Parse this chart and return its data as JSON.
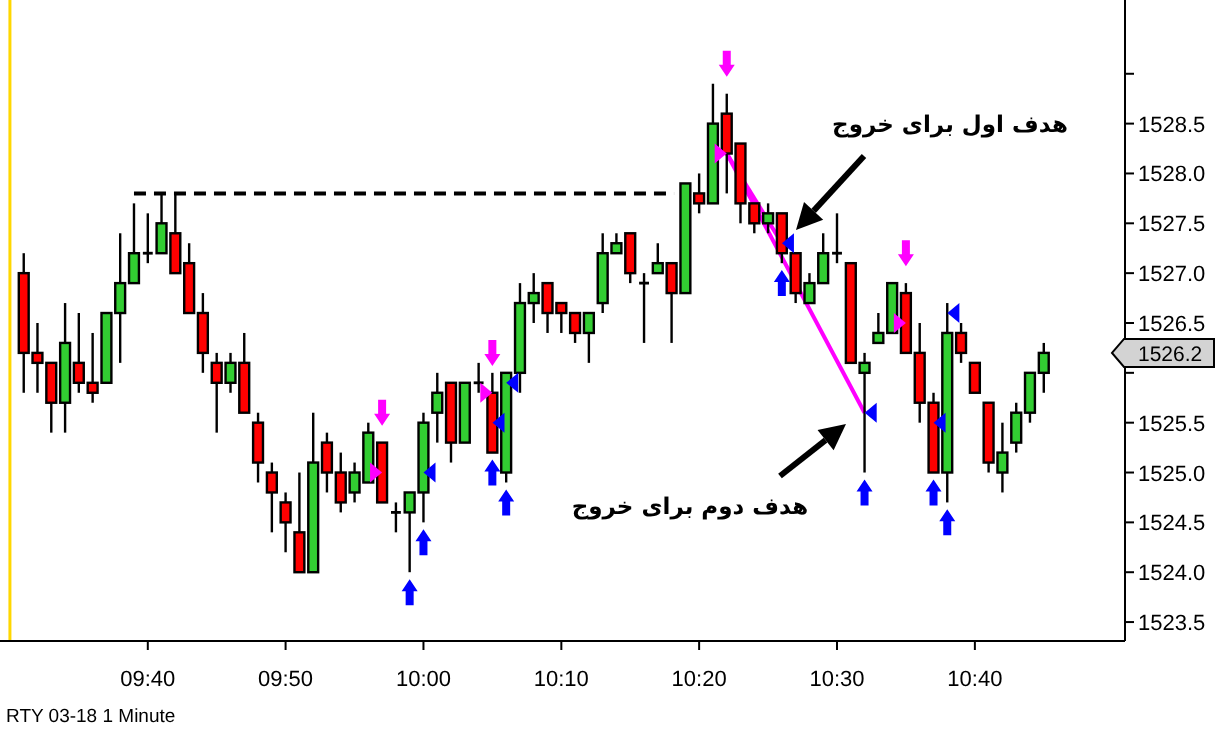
{
  "chart_data": {
    "type": "candlestick",
    "x": [
      9.5167,
      9.5333,
      9.55,
      9.5667,
      9.5833,
      9.6,
      9.6167,
      9.6333,
      9.65,
      9.6667,
      9.6833,
      9.7,
      9.7167,
      9.7333,
      9.75,
      9.7667,
      9.7833,
      9.8,
      9.8167,
      9.8333,
      9.85,
      9.8667,
      9.8833,
      9.9,
      9.9167,
      9.9333,
      9.95,
      9.9667,
      9.9833,
      10,
      10.0167,
      10.0333,
      10.05,
      10.0667,
      10.0833,
      10.1,
      10.1167,
      10.1333,
      10.15,
      10.1667,
      10.1833,
      10.2,
      10.2167,
      10.2333,
      10.25,
      10.2667,
      10.2833,
      10.3,
      10.3167,
      10.3333,
      10.35,
      10.3667,
      10.3833,
      10.4,
      10.4167,
      10.4333,
      10.45,
      10.4667,
      10.4833,
      10.5,
      10.5167,
      10.5333,
      10.55,
      10.5667,
      10.5833,
      10.6,
      10.6167,
      10.6333,
      10.65,
      10.6667,
      10.6833,
      10.7,
      10.7167,
      10.7333,
      10.75
    ],
    "ohlc": [
      [
        1527.0,
        1527.2,
        1525.8,
        1526.2
      ],
      [
        1526.2,
        1526.5,
        1525.8,
        1526.1
      ],
      [
        1526.1,
        1526.1,
        1525.4,
        1525.7
      ],
      [
        1525.7,
        1526.7,
        1525.4,
        1526.3
      ],
      [
        1526.1,
        1526.6,
        1525.8,
        1525.9
      ],
      [
        1525.9,
        1526.4,
        1525.7,
        1525.8
      ],
      [
        1525.9,
        1526.6,
        1525.9,
        1526.6
      ],
      [
        1526.6,
        1527.4,
        1526.1,
        1526.9
      ],
      [
        1526.9,
        1527.7,
        1526.9,
        1527.2
      ],
      [
        1527.2,
        1527.6,
        1527.1,
        1527.2
      ],
      [
        1527.2,
        1527.8,
        1527.2,
        1527.5
      ],
      [
        1527.4,
        1527.8,
        1527.0,
        1527.0
      ],
      [
        1527.1,
        1527.3,
        1526.6,
        1526.6
      ],
      [
        1526.6,
        1526.8,
        1526.0,
        1526.2
      ],
      [
        1526.1,
        1526.2,
        1525.4,
        1525.9
      ],
      [
        1525.9,
        1526.2,
        1525.8,
        1526.1
      ],
      [
        1526.1,
        1526.4,
        1525.6,
        1525.6
      ],
      [
        1525.5,
        1525.6,
        1524.9,
        1525.1
      ],
      [
        1525.0,
        1525.1,
        1524.4,
        1524.8
      ],
      [
        1524.7,
        1524.8,
        1524.2,
        1524.5
      ],
      [
        1524.4,
        1525.0,
        1524.0,
        1524.0
      ],
      [
        1524.0,
        1525.6,
        1524.0,
        1525.1
      ],
      [
        1525.3,
        1525.4,
        1524.8,
        1525.0
      ],
      [
        1525.0,
        1525.2,
        1524.6,
        1524.7
      ],
      [
        1524.8,
        1525.1,
        1524.7,
        1525.0
      ],
      [
        1524.9,
        1525.5,
        1524.9,
        1525.4
      ],
      [
        1525.3,
        1525.3,
        1524.7,
        1524.7
      ],
      [
        1524.6,
        1524.7,
        1524.4,
        1524.6
      ],
      [
        1524.6,
        1524.8,
        1524.0,
        1524.8
      ],
      [
        1524.8,
        1525.6,
        1524.5,
        1525.5
      ],
      [
        1525.6,
        1526.0,
        1525.3,
        1525.8
      ],
      [
        1525.9,
        1525.9,
        1525.1,
        1525.3
      ],
      [
        1525.3,
        1525.9,
        1525.3,
        1525.9
      ],
      [
        1525.9,
        1526.1,
        1525.8,
        1525.9
      ],
      [
        1525.8,
        1526.0,
        1525.2,
        1525.2
      ],
      [
        1525.0,
        1526.0,
        1524.9,
        1526.0
      ],
      [
        1526.0,
        1526.9,
        1525.8,
        1526.7
      ],
      [
        1526.7,
        1527.0,
        1526.5,
        1526.8
      ],
      [
        1526.9,
        1526.9,
        1526.4,
        1526.6
      ],
      [
        1526.7,
        1526.7,
        1526.4,
        1526.6
      ],
      [
        1526.6,
        1526.6,
        1526.3,
        1526.4
      ],
      [
        1526.4,
        1526.6,
        1526.1,
        1526.6
      ],
      [
        1526.7,
        1527.4,
        1526.6,
        1527.2
      ],
      [
        1527.2,
        1527.4,
        1527.2,
        1527.3
      ],
      [
        1527.4,
        1527.4,
        1526.9,
        1527.0
      ],
      [
        1526.9,
        1527.0,
        1526.3,
        1526.9
      ],
      [
        1527.0,
        1527.3,
        1527.0,
        1527.1
      ],
      [
        1527.1,
        1527.1,
        1526.3,
        1526.8
      ],
      [
        1526.8,
        1527.9,
        1526.8,
        1527.9
      ],
      [
        1527.8,
        1528.0,
        1527.6,
        1527.7
      ],
      [
        1527.7,
        1528.9,
        1527.7,
        1528.5
      ],
      [
        1528.6,
        1528.8,
        1527.8,
        1528.2
      ],
      [
        1528.3,
        1528.3,
        1527.5,
        1527.7
      ],
      [
        1527.7,
        1527.7,
        1527.4,
        1527.5
      ],
      [
        1527.5,
        1527.7,
        1527.4,
        1527.6
      ],
      [
        1527.6,
        1527.6,
        1527.1,
        1527.2
      ],
      [
        1527.2,
        1527.2,
        1526.7,
        1526.8
      ],
      [
        1526.7,
        1527.0,
        1526.7,
        1526.9
      ],
      [
        1526.9,
        1527.4,
        1526.9,
        1527.2
      ],
      [
        1527.2,
        1527.6,
        1527.1,
        1527.2
      ],
      [
        1527.1,
        1527.1,
        1526.1,
        1526.1
      ],
      [
        1526.0,
        1526.2,
        1525.0,
        1526.1
      ],
      [
        1526.3,
        1526.6,
        1526.3,
        1526.4
      ],
      [
        1526.4,
        1526.9,
        1526.4,
        1526.9
      ],
      [
        1526.8,
        1526.9,
        1526.2,
        1526.2
      ],
      [
        1526.2,
        1526.5,
        1525.5,
        1525.7
      ],
      [
        1525.7,
        1525.8,
        1525.0,
        1525.0
      ],
      [
        1525.0,
        1526.7,
        1524.7,
        1526.4
      ],
      [
        1526.4,
        1526.5,
        1526.1,
        1526.2
      ],
      [
        1526.1,
        1526.1,
        1525.8,
        1525.8
      ],
      [
        1525.7,
        1525.7,
        1525.0,
        1525.1
      ],
      [
        1525.0,
        1525.5,
        1524.8,
        1525.2
      ],
      [
        1525.3,
        1525.7,
        1525.2,
        1525.6
      ],
      [
        1525.6,
        1526.0,
        1525.5,
        1526.0
      ],
      [
        1526.0,
        1526.3,
        1525.8,
        1526.2
      ]
    ],
    "colors": [
      "#ff0000",
      "#ff0000",
      "#ff0000",
      "#32cd32",
      "#ff0000",
      "#ff0000",
      "#32cd32",
      "#32cd32",
      "#32cd32",
      "#000000",
      "#32cd32",
      "#ff0000",
      "#ff0000",
      "#ff0000",
      "#ff0000",
      "#32cd32",
      "#ff0000",
      "#ff0000",
      "#ff0000",
      "#ff0000",
      "#ff0000",
      "#32cd32",
      "#ff0000",
      "#ff0000",
      "#32cd32",
      "#32cd32",
      "#ff0000",
      "#000000",
      "#32cd32",
      "#32cd32",
      "#32cd32",
      "#ff0000",
      "#32cd32",
      "#000000",
      "#ff0000",
      "#32cd32",
      "#32cd32",
      "#32cd32",
      "#ff0000",
      "#ff0000",
      "#ff0000",
      "#32cd32",
      "#32cd32",
      "#32cd32",
      "#ff0000",
      "#000000",
      "#32cd32",
      "#ff0000",
      "#32cd32",
      "#ff0000",
      "#32cd32",
      "#ff0000",
      "#ff0000",
      "#ff0000",
      "#32cd32",
      "#ff0000",
      "#ff0000",
      "#32cd32",
      "#32cd32",
      "#000000",
      "#ff0000",
      "#32cd32",
      "#32cd32",
      "#32cd32",
      "#ff0000",
      "#ff0000",
      "#ff0000",
      "#32cd32",
      "#ff0000",
      "#ff0000",
      "#ff0000",
      "#32cd32",
      "#32cd32",
      "#32cd32",
      "#32cd32"
    ],
    "xlim": [
      9.488,
      10.847
    ],
    "ylim": [
      1523.32,
      1529.74
    ],
    "xticks": [
      {
        "value": 9.6667,
        "label": "09:40"
      },
      {
        "value": 9.8333,
        "label": "09:50"
      },
      {
        "value": 10,
        "label": "10:00"
      },
      {
        "value": 10.1667,
        "label": "10:10"
      },
      {
        "value": 10.3333,
        "label": "10:20"
      },
      {
        "value": 10.5,
        "label": "10:30"
      },
      {
        "value": 10.6667,
        "label": "10:40"
      }
    ],
    "yticks": [
      1523.5,
      {
        "value": 1524,
        "label": "1524.0"
      },
      1524.5,
      {
        "value": 1525,
        "label": "1525.0"
      },
      1525.5,
      {
        "value": 1526,
        "label": null
      },
      1526.2,
      1526.5,
      {
        "value": 1527,
        "label": "1527.0"
      },
      1527.5,
      {
        "value": 1528,
        "label": "1528.0"
      },
      1528.5,
      {
        "value": 1529,
        "label": null
      }
    ],
    "series": [
      {
        "type": "line",
        "x": [
          9.65,
          10.303
        ],
        "values": [
          1527.8,
          1527.8
        ],
        "color": "#000000",
        "line_style": "dashed"
      },
      {
        "type": "line",
        "x": [
          10.3667,
          10.4333
        ],
        "values": [
          1528.2,
          1527.3
        ],
        "color": "#ff00ff"
      },
      {
        "type": "line",
        "x": [
          10.3667,
          10.5333
        ],
        "values": [
          1528.2,
          1525.6
        ],
        "color": "#ff00ff"
      },
      {
        "type": "scatter",
        "x": [
          9.95,
          10.0833,
          10.3667,
          10.5833
        ],
        "values": [
          1525.6,
          1526.2,
          1529.1,
          1527.2
        ],
        "color": "#ff00ff",
        "marker": "triangle"
      },
      {
        "type": "scatter",
        "x": [
          9.9833,
          10,
          10.0833,
          10.1,
          10.4333,
          10.5333,
          10.6167,
          10.6333
        ],
        "values": [
          1523.8,
          1524.3,
          1525.0,
          1524.7,
          1526.9,
          1524.8,
          1524.8,
          1524.5
        ],
        "color": "#0000ff",
        "marker": "triangle"
      },
      {
        "type": "scatter",
        "x": [
          10.0073,
          10.0907,
          10.1073,
          10.4407,
          10.5407,
          10.624,
          10.6407
        ],
        "values": [
          1525.0,
          1525.5,
          1525.9,
          1527.3,
          1525.6,
          1525.5,
          1526.6
        ],
        "color": "#0000ff",
        "marker": "triangle"
      },
      {
        "type": "scatter",
        "x": [
          9.9427,
          10.076,
          10.3594,
          10.576
        ],
        "values": [
          1525.0,
          1525.8,
          1528.2,
          1526.5
        ],
        "color": "#ff00ff",
        "marker": "triangle"
      }
    ],
    "ref_lines": [
      {
        "axis": "x",
        "value": 9.5,
        "color": "#ffd700"
      }
    ],
    "annotations": [
      "هدف اول برای خروج",
      "هدف دوم برای خروج",
      "RTY 03-18 1 Minute"
    ]
  }
}
